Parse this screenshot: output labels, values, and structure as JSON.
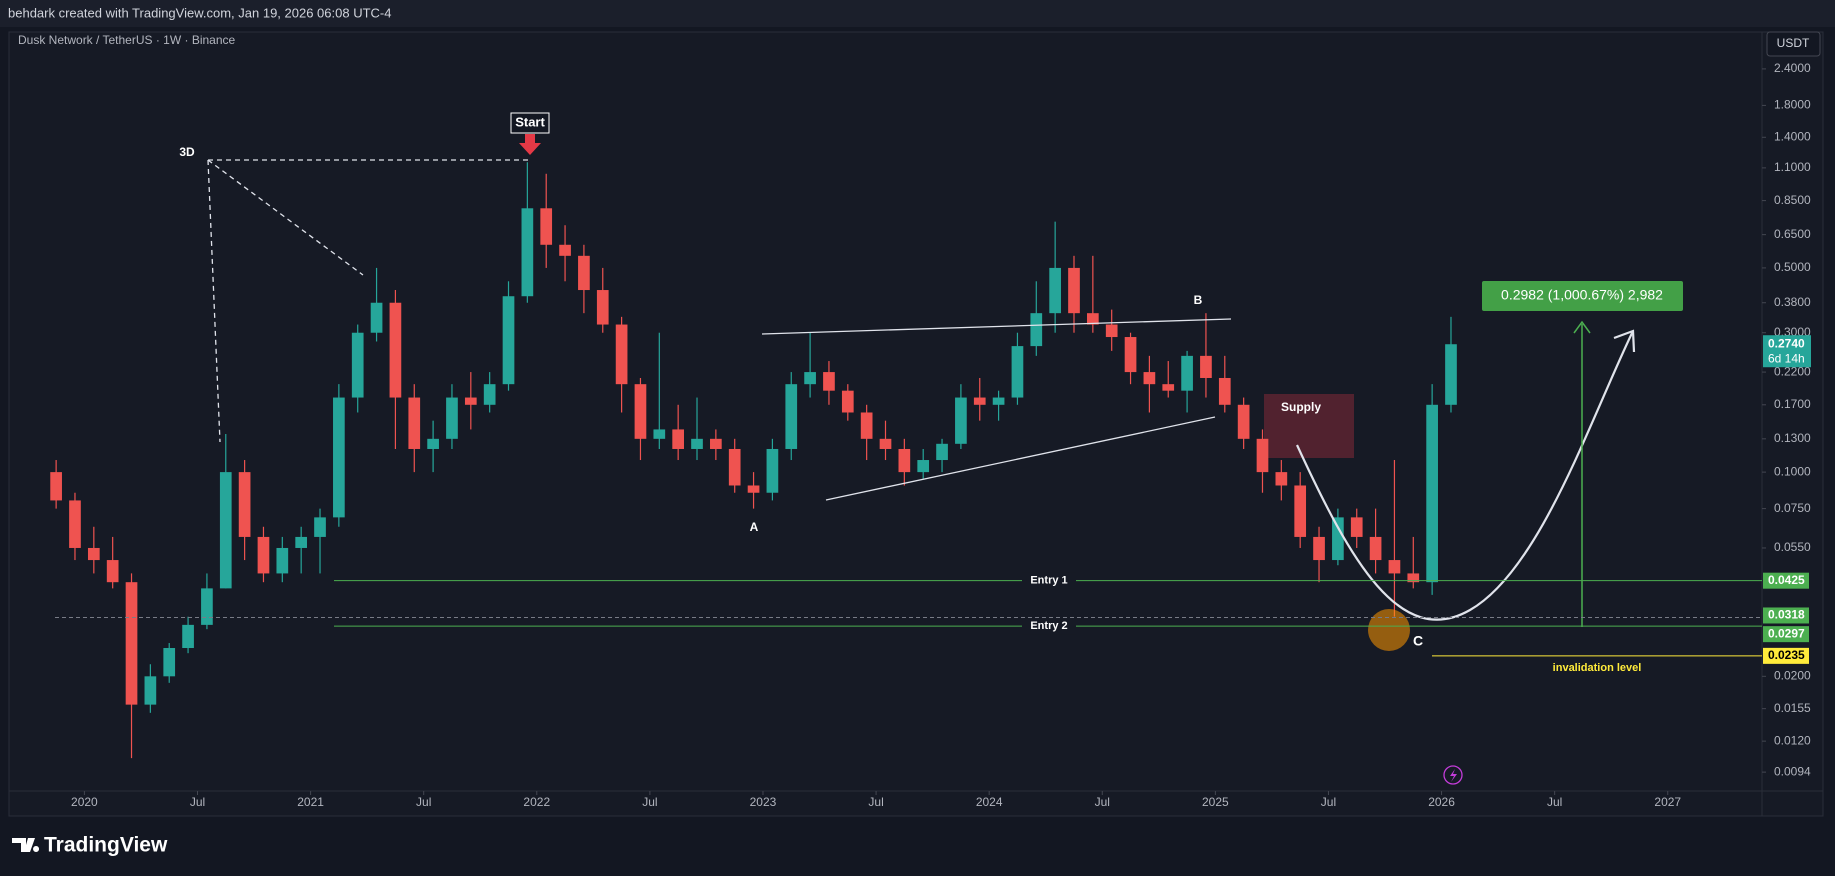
{
  "header": {
    "attribution": "behdark created with TradingView.com, Jan 19, 2026 06:08 UTC-4",
    "symbol": "Dusk Network / TetherUS · 1W · Binance",
    "currency": "USDT",
    "brand": "TradingView"
  },
  "chart_data": {
    "type": "candlestick",
    "x": [
      "2019-11",
      "2019-12",
      "2020-01",
      "2020-02",
      "2020-03",
      "2020-04",
      "2020-05",
      "2020-06",
      "2020-07",
      "2020-08",
      "2020-09",
      "2020-10",
      "2020-11",
      "2020-12",
      "2021-01",
      "2021-02",
      "2021-03",
      "2021-04",
      "2021-05",
      "2021-06",
      "2021-07",
      "2021-08",
      "2021-09",
      "2021-10",
      "2021-11",
      "2021-12",
      "2022-01",
      "2022-02",
      "2022-03",
      "2022-04",
      "2022-05",
      "2022-06",
      "2022-07",
      "2022-08",
      "2022-09",
      "2022-10",
      "2022-11",
      "2022-12",
      "2023-01",
      "2023-02",
      "2023-03",
      "2023-04",
      "2023-05",
      "2023-06",
      "2023-07",
      "2023-08",
      "2023-09",
      "2023-10",
      "2023-11",
      "2023-12",
      "2024-01",
      "2024-02",
      "2024-03",
      "2024-04",
      "2024-05",
      "2024-06",
      "2024-07",
      "2024-08",
      "2024-09",
      "2024-10",
      "2024-11",
      "2024-12",
      "2025-01",
      "2025-02",
      "2025-03",
      "2025-04",
      "2025-05",
      "2025-06",
      "2025-07",
      "2025-08",
      "2025-09",
      "2025-10",
      "2025-11",
      "2025-12",
      "2026-01"
    ],
    "open": [
      0.1,
      0.08,
      0.055,
      0.05,
      0.042,
      0.016,
      0.02,
      0.025,
      0.03,
      0.04,
      0.1,
      0.06,
      0.045,
      0.055,
      0.06,
      0.07,
      0.18,
      0.3,
      0.38,
      0.18,
      0.12,
      0.13,
      0.18,
      0.17,
      0.2,
      0.4,
      0.8,
      0.6,
      0.55,
      0.42,
      0.32,
      0.2,
      0.13,
      0.14,
      0.12,
      0.13,
      0.12,
      0.09,
      0.085,
      0.12,
      0.2,
      0.22,
      0.19,
      0.16,
      0.13,
      0.12,
      0.1,
      0.11,
      0.125,
      0.18,
      0.17,
      0.18,
      0.27,
      0.35,
      0.5,
      0.35,
      0.32,
      0.29,
      0.22,
      0.2,
      0.19,
      0.25,
      0.21,
      0.17,
      0.13,
      0.1,
      0.09,
      0.06,
      0.05,
      0.07,
      0.06,
      0.05,
      0.045,
      0.042,
      0.17
    ],
    "high": [
      0.11,
      0.085,
      0.065,
      0.06,
      0.045,
      0.022,
      0.026,
      0.032,
      0.045,
      0.135,
      0.11,
      0.065,
      0.06,
      0.065,
      0.075,
      0.2,
      0.32,
      0.5,
      0.42,
      0.2,
      0.15,
      0.2,
      0.22,
      0.22,
      0.45,
      1.15,
      1.05,
      0.7,
      0.6,
      0.5,
      0.34,
      0.21,
      0.3,
      0.17,
      0.18,
      0.14,
      0.13,
      0.1,
      0.13,
      0.22,
      0.3,
      0.24,
      0.2,
      0.17,
      0.15,
      0.13,
      0.12,
      0.13,
      0.2,
      0.21,
      0.19,
      0.3,
      0.45,
      0.72,
      0.55,
      0.55,
      0.36,
      0.3,
      0.25,
      0.24,
      0.26,
      0.35,
      0.25,
      0.18,
      0.14,
      0.11,
      0.1,
      0.065,
      0.075,
      0.075,
      0.075,
      0.11,
      0.06,
      0.2,
      0.34
    ],
    "low": [
      0.075,
      0.05,
      0.045,
      0.04,
      0.0105,
      0.015,
      0.019,
      0.024,
      0.029,
      0.04,
      0.05,
      0.042,
      0.042,
      0.045,
      0.045,
      0.065,
      0.16,
      0.28,
      0.12,
      0.1,
      0.1,
      0.12,
      0.14,
      0.16,
      0.19,
      0.38,
      0.5,
      0.45,
      0.35,
      0.3,
      0.16,
      0.11,
      0.12,
      0.11,
      0.11,
      0.11,
      0.085,
      0.075,
      0.08,
      0.11,
      0.18,
      0.17,
      0.15,
      0.11,
      0.11,
      0.09,
      0.095,
      0.1,
      0.12,
      0.15,
      0.15,
      0.17,
      0.25,
      0.3,
      0.3,
      0.3,
      0.26,
      0.2,
      0.16,
      0.18,
      0.16,
      0.18,
      0.16,
      0.12,
      0.085,
      0.08,
      0.055,
      0.042,
      0.048,
      0.055,
      0.045,
      0.032,
      0.04,
      0.038,
      0.16
    ],
    "close": [
      0.08,
      0.055,
      0.05,
      0.042,
      0.016,
      0.02,
      0.025,
      0.03,
      0.04,
      0.1,
      0.06,
      0.045,
      0.055,
      0.06,
      0.07,
      0.18,
      0.3,
      0.38,
      0.18,
      0.12,
      0.13,
      0.18,
      0.17,
      0.2,
      0.4,
      0.8,
      0.6,
      0.55,
      0.42,
      0.32,
      0.2,
      0.13,
      0.14,
      0.12,
      0.13,
      0.12,
      0.09,
      0.085,
      0.12,
      0.2,
      0.22,
      0.19,
      0.16,
      0.13,
      0.12,
      0.1,
      0.11,
      0.125,
      0.18,
      0.17,
      0.18,
      0.27,
      0.35,
      0.5,
      0.35,
      0.32,
      0.29,
      0.22,
      0.2,
      0.19,
      0.25,
      0.21,
      0.17,
      0.13,
      0.1,
      0.09,
      0.06,
      0.05,
      0.07,
      0.06,
      0.05,
      0.045,
      0.042,
      0.17,
      0.274
    ],
    "up_color": "#26a69a",
    "down_color": "#ef5350",
    "log_scale": true,
    "grid": false,
    "ylim": [
      0.0081,
      3.21
    ],
    "yticks": [
      {
        "value": 2.4,
        "label": "2.4000"
      },
      {
        "value": 1.8,
        "label": "1.8000"
      },
      {
        "value": 1.4,
        "label": "1.4000"
      },
      {
        "value": 1.1,
        "label": "1.1000"
      },
      {
        "value": 0.85,
        "label": "0.8500"
      },
      {
        "value": 0.65,
        "label": "0.6500"
      },
      {
        "value": 0.5,
        "label": "0.5000"
      },
      {
        "value": 0.38,
        "label": "0.3800"
      },
      {
        "value": 0.3,
        "label": "0.3000"
      },
      {
        "value": 0.22,
        "label": "0.2200"
      },
      {
        "value": 0.17,
        "label": "0.1700"
      },
      {
        "value": 0.13,
        "label": "0.1300"
      },
      {
        "value": 0.1,
        "label": "0.1000"
      },
      {
        "value": 0.075,
        "label": "0.0750"
      },
      {
        "value": 0.055,
        "label": "0.0550"
      },
      {
        "value": 0.02,
        "label": "0.0200"
      },
      {
        "value": 0.0155,
        "label": "0.0155"
      },
      {
        "value": 0.012,
        "label": "0.0120"
      },
      {
        "value": 0.0094,
        "label": "0.0094"
      }
    ],
    "xlim": [
      "2019-09",
      "2027-06"
    ],
    "xticks": [
      {
        "value": "2020-01",
        "label": "2020"
      },
      {
        "value": "2020-07",
        "label": "Jul"
      },
      {
        "value": "2021-01",
        "label": "2021"
      },
      {
        "value": "2021-07",
        "label": "Jul"
      },
      {
        "value": "2022-01",
        "label": "2022"
      },
      {
        "value": "2022-07",
        "label": "Jul"
      },
      {
        "value": "2023-01",
        "label": "2023"
      },
      {
        "value": "2023-07",
        "label": "Jul"
      },
      {
        "value": "2024-01",
        "label": "2024"
      },
      {
        "value": "2024-07",
        "label": "Jul"
      },
      {
        "value": "2025-01",
        "label": "2025"
      },
      {
        "value": "2025-07",
        "label": "Jul"
      },
      {
        "value": "2026-01",
        "label": "2026"
      },
      {
        "value": "2026-07",
        "label": "Jul"
      },
      {
        "value": "2027-01",
        "label": "2027"
      }
    ],
    "last_price": {
      "value": 0.274,
      "label": "0.2740",
      "countdown": "6d 14h"
    },
    "levels": [
      {
        "name": "Entry 1",
        "value": 0.0425,
        "label": "0.0425",
        "color": "#4caf50"
      },
      {
        "value": 0.0318,
        "label": "0.0318",
        "color": "#4caf50"
      },
      {
        "name": "Entry 2",
        "value": 0.0297,
        "label": "0.0297",
        "color": "#4caf50"
      },
      {
        "name": "invalidation level",
        "value": 0.0235,
        "label": "0.0235",
        "color": "#ffeb3b"
      }
    ],
    "annotations": {
      "start": "Start",
      "three_d": "3D",
      "a": "A",
      "b": "B",
      "c": "C",
      "supply": "Supply",
      "target": "0.2982 (1,000.67%) 2,982"
    }
  }
}
